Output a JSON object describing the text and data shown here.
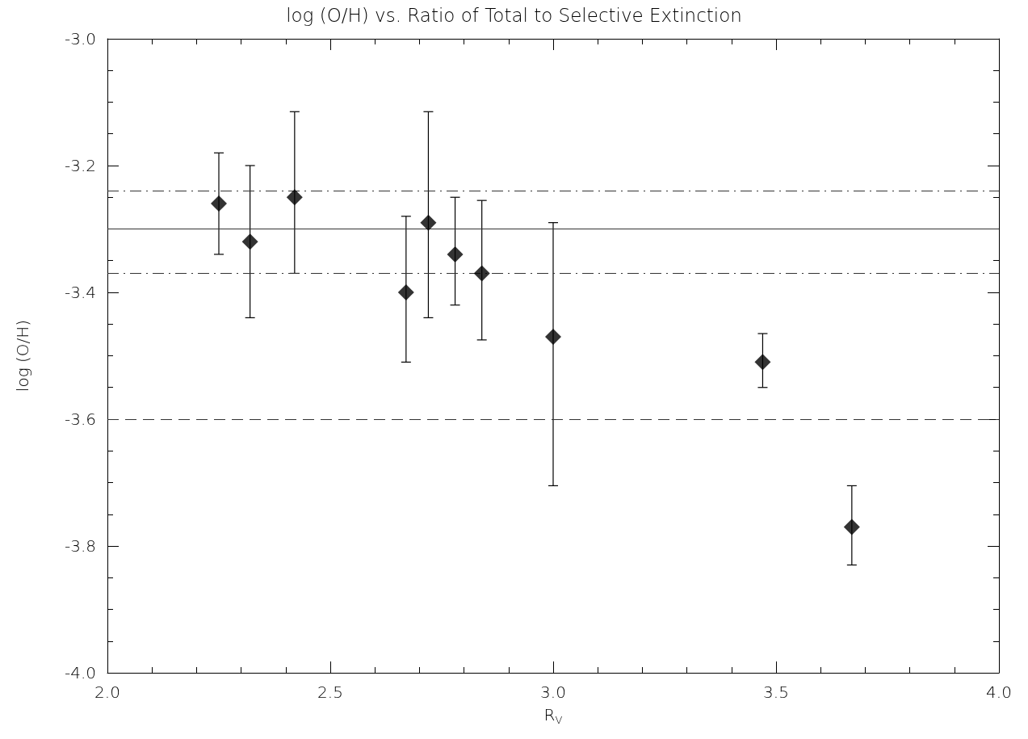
{
  "chart_data": {
    "type": "scatter",
    "title": "log (O/H) vs. Ratio of Total to Selective Extinction",
    "xlabel": "R$_{V}$",
    "ylabel": "log (O/H)",
    "x": [
      2.25,
      2.32,
      2.42,
      2.67,
      2.72,
      2.78,
      2.84,
      3.0,
      3.47,
      3.67
    ],
    "series": [
      {
        "color": "#000000",
        "values": [
          -3.26,
          -3.32,
          -3.25,
          -3.4,
          -3.29,
          -3.34,
          -3.37,
          -3.47,
          -3.51,
          -3.77
        ],
        "errors": [
          [
            -3.34,
            -3.18
          ],
          [
            -3.44,
            -3.2
          ],
          [
            -3.37,
            -3.115
          ],
          [
            -3.51,
            -3.28
          ],
          [
            -3.44,
            -3.115
          ],
          [
            -3.42,
            -3.25
          ],
          [
            -3.475,
            -3.255
          ],
          [
            -3.705,
            -3.29
          ],
          [
            -3.55,
            -3.465
          ],
          [
            -3.83,
            -3.705
          ]
        ]
      }
    ],
    "marker": "diamond",
    "xlim": [
      2.0,
      4.0
    ],
    "xticks": [
      {
        "value": 2,
        "label": "2.0"
      },
      2.5,
      {
        "value": 3,
        "label": "3.0"
      },
      3.5,
      {
        "value": 4,
        "label": "4.0"
      }
    ],
    "ylim": [
      -4.0,
      -3.0
    ],
    "yticks": [
      {
        "value": -4,
        "label": "-4.0"
      },
      -3.8,
      -3.6,
      -3.4,
      -3.2,
      {
        "value": -3,
        "label": "-3.0"
      }
    ],
    "ref_lines": [
      {
        "axis": "y",
        "value": -3.3,
        "line_style": "solid"
      },
      {
        "axis": "y",
        "value": -3.24,
        "line_style": "dashdot"
      },
      {
        "axis": "y",
        "value": -3.37,
        "line_style": "dashdot"
      },
      {
        "axis": "y",
        "value": -3.6,
        "line_style": "dashed"
      }
    ],
    "grid": false,
    "legend": false
  }
}
